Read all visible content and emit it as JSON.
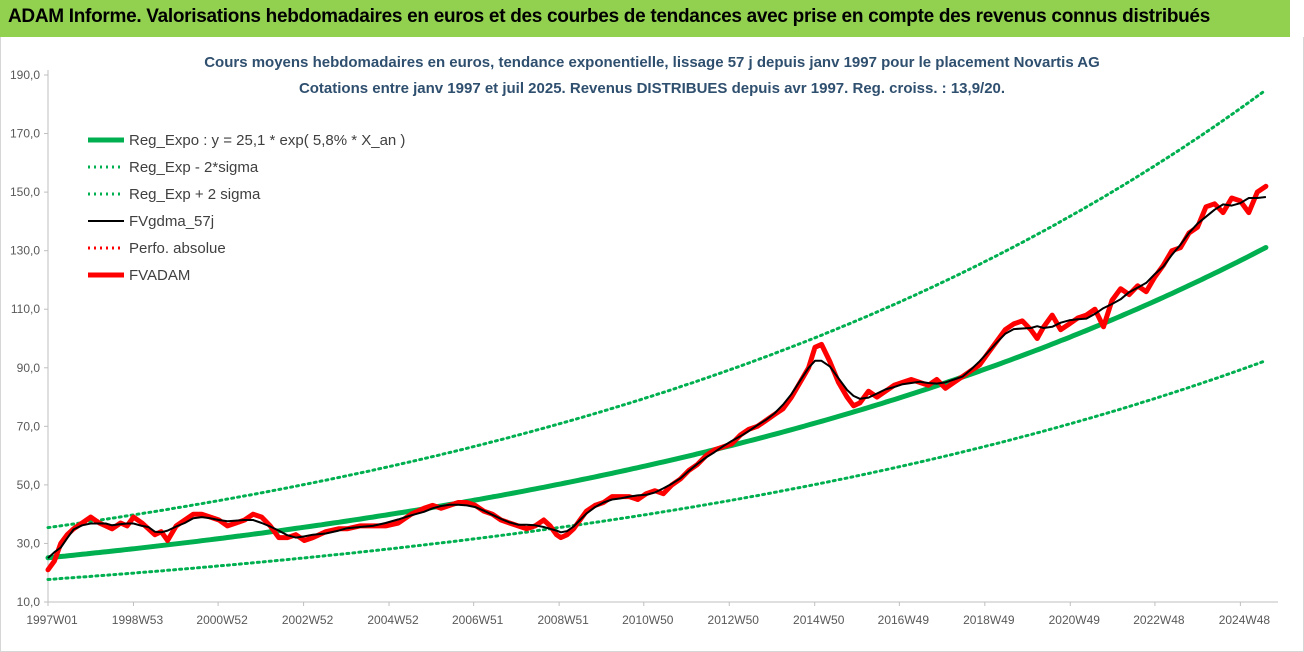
{
  "banner": {
    "title": "ADAM Informe. Valorisations hebdomadaires en euros et des courbes de tendances avec prise en compte des revenus connus distribués",
    "color": "#92d050"
  },
  "chart_data": {
    "type": "line",
    "title": "Cours moyens hebdomadaires en euros, tendance exponentielle, lissage 57 j depuis janv 1997 pour le placement Novartis AG",
    "subtitle": "Cotations entre janv 1997 et juil 2025. Revenus DISTRIBUES depuis avr 1997. Reg. croiss. : 13,9/20.",
    "ylim": [
      10,
      190
    ],
    "yticks": [
      "10,0",
      "30,0",
      "50,0",
      "70,0",
      "90,0",
      "110,0",
      "130,0",
      "150,0",
      "170,0",
      "190,0"
    ],
    "xlim": [
      1997.0,
      2025.55
    ],
    "xtick_labels": [
      "1997W01",
      "1998W53",
      "2000W52",
      "2002W52",
      "2004W52",
      "2006W51",
      "2008W51",
      "2010W50",
      "2012W50",
      "2014W50",
      "2016W49",
      "2018W49",
      "2020W49",
      "2022W48",
      "2024W48"
    ],
    "grid": false,
    "legend_position": "top-left",
    "series": [
      {
        "name": "Reg_Expo : y = 25,1 * exp( 5,8% *  X_an )",
        "color": "#00b050",
        "style": "solid-thick",
        "formula": {
          "a": 25.1,
          "b": 0.058
        },
        "x0": 1997.0
      },
      {
        "name": "Reg_Exp - 2*sigma",
        "color": "#00b050",
        "style": "dotted",
        "formula": {
          "a": 17.7,
          "b": 0.058
        },
        "x0": 1997.0
      },
      {
        "name": "Reg_Exp + 2 sigma",
        "color": "#00b050",
        "style": "dotted",
        "formula": {
          "a": 35.4,
          "b": 0.058
        },
        "x0": 1997.0
      },
      {
        "name": "FVgdma_57j",
        "color": "#000000",
        "style": "solid"
      },
      {
        "name": "Perfo. absolue",
        "color": "#ff0000",
        "style": "dotted"
      },
      {
        "name": "FVADAM",
        "color": "#ff0000",
        "style": "solid-thick",
        "x": [
          1997.0,
          1997.15,
          1997.3,
          1997.45,
          1997.6,
          1997.8,
          1998.0,
          1998.2,
          1998.35,
          1998.5,
          1998.7,
          1998.85,
          1999.0,
          1999.2,
          1999.35,
          1999.5,
          1999.65,
          1999.8,
          2000.0,
          2000.2,
          2000.4,
          2000.6,
          2000.8,
          2001.0,
          2001.2,
          2001.4,
          2001.6,
          2001.8,
          2002.0,
          2002.2,
          2002.4,
          2002.6,
          2002.8,
          2003.0,
          2003.2,
          2003.5,
          2003.8,
          2004.0,
          2004.3,
          2004.6,
          2004.9,
          2005.2,
          2005.5,
          2005.8,
          2006.0,
          2006.2,
          2006.4,
          2006.6,
          2006.8,
          2007.0,
          2007.2,
          2007.4,
          2007.6,
          2007.8,
          2008.0,
          2008.2,
          2008.4,
          2008.6,
          2008.75,
          2008.9,
          2009.0,
          2009.15,
          2009.3,
          2009.45,
          2009.6,
          2009.8,
          2010.0,
          2010.2,
          2010.4,
          2010.6,
          2010.8,
          2011.0,
          2011.2,
          2011.4,
          2011.6,
          2011.8,
          2012.0,
          2012.2,
          2012.4,
          2012.6,
          2012.8,
          2013.0,
          2013.2,
          2013.4,
          2013.6,
          2013.8,
          2014.0,
          2014.2,
          2014.4,
          2014.6,
          2014.8,
          2014.95,
          2015.1,
          2015.3,
          2015.5,
          2015.7,
          2015.85,
          2016.0,
          2016.2,
          2016.4,
          2016.6,
          2016.8,
          2017.0,
          2017.2,
          2017.4,
          2017.6,
          2017.8,
          2018.0,
          2018.2,
          2018.4,
          2018.6,
          2018.8,
          2019.0,
          2019.2,
          2019.4,
          2019.6,
          2019.8,
          2020.0,
          2020.15,
          2020.3,
          2020.5,
          2020.7,
          2020.9,
          2021.1,
          2021.3,
          2021.5,
          2021.7,
          2021.9,
          2022.1,
          2022.3,
          2022.5,
          2022.7,
          2022.9,
          2023.1,
          2023.3,
          2023.5,
          2023.7,
          2023.9,
          2024.1,
          2024.3,
          2024.5,
          2024.7,
          2024.9,
          2025.1,
          2025.3,
          2025.5
        ],
        "values": [
          21,
          24,
          30,
          33,
          35,
          37,
          39,
          37,
          36,
          35,
          37,
          36,
          39,
          37,
          35,
          33,
          34,
          31,
          36,
          38,
          40,
          40,
          39,
          38,
          36,
          37,
          38,
          40,
          39,
          36,
          32,
          32,
          33,
          31,
          32,
          34,
          35,
          35,
          36,
          36,
          36,
          37,
          40,
          42,
          43,
          42,
          43,
          44,
          44,
          43,
          41,
          40,
          38,
          37,
          36,
          35,
          36,
          38,
          36,
          33,
          32,
          33,
          35,
          38,
          41,
          43,
          44,
          46,
          46,
          46,
          45,
          47,
          48,
          47,
          50,
          52,
          55,
          57,
          60,
          62,
          63,
          64,
          67,
          69,
          70,
          72,
          74,
          76,
          80,
          85,
          90,
          97,
          98,
          92,
          85,
          80,
          77,
          78,
          82,
          80,
          82,
          84,
          85,
          86,
          85,
          84,
          86,
          83,
          85,
          87,
          89,
          91,
          95,
          99,
          103,
          105,
          106,
          103,
          100,
          104,
          108,
          103,
          105,
          107,
          108,
          110,
          104,
          113,
          117,
          115,
          118,
          116,
          121,
          125,
          130,
          131,
          136,
          138,
          145,
          146,
          143,
          148,
          147,
          143,
          150,
          152
        ]
      }
    ]
  }
}
